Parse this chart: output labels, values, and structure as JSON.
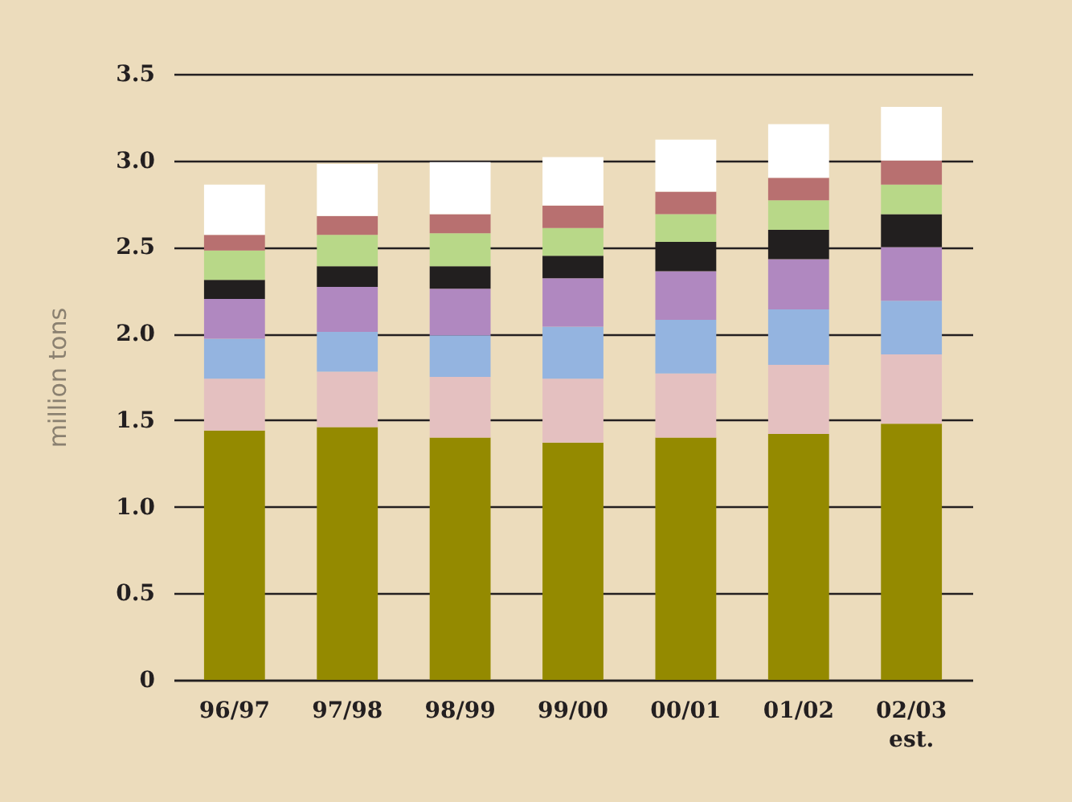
{
  "chart_data": {
    "type": "bar",
    "ylabel": "million tons",
    "categories": [
      "96/97",
      "97/98",
      "98/99",
      "99/00",
      "00/01",
      "01/02",
      "02/03\nest."
    ],
    "stacked": true,
    "series": [
      {
        "color": "#948a00",
        "values": [
          1.44,
          1.46,
          1.4,
          1.37,
          1.4,
          1.42,
          1.48
        ]
      },
      {
        "color": "#e4c0c0",
        "values": [
          0.3,
          0.32,
          0.35,
          0.37,
          0.37,
          0.4,
          0.4
        ]
      },
      {
        "color": "#94b4e0",
        "values": [
          0.23,
          0.23,
          0.24,
          0.3,
          0.31,
          0.32,
          0.31
        ]
      },
      {
        "color": "#b088c0",
        "values": [
          0.23,
          0.26,
          0.27,
          0.28,
          0.28,
          0.29,
          0.31
        ]
      },
      {
        "color": "#221f1f",
        "values": [
          0.11,
          0.12,
          0.13,
          0.13,
          0.17,
          0.17,
          0.19
        ]
      },
      {
        "color": "#b8d888",
        "values": [
          0.17,
          0.18,
          0.19,
          0.16,
          0.16,
          0.17,
          0.17
        ]
      },
      {
        "color": "#b87070",
        "values": [
          0.09,
          0.11,
          0.11,
          0.13,
          0.13,
          0.13,
          0.14
        ]
      },
      {
        "color": "#ffffff",
        "values": [
          0.29,
          0.3,
          0.3,
          0.28,
          0.3,
          0.31,
          0.31
        ]
      }
    ],
    "ylim": [
      0,
      3.5
    ],
    "yticks": [
      0,
      {
        "value": 0.5,
        "label": "0.5"
      },
      {
        "value": 1,
        "label": "1.0"
      },
      {
        "value": 1.5,
        "label": "1.5"
      },
      {
        "value": 2,
        "label": "2.0"
      },
      {
        "value": 2.5,
        "label": "2.5"
      },
      {
        "value": 3,
        "label": "3.0"
      },
      {
        "value": 3.5,
        "label": "3.5"
      }
    ],
    "grid": "y"
  }
}
